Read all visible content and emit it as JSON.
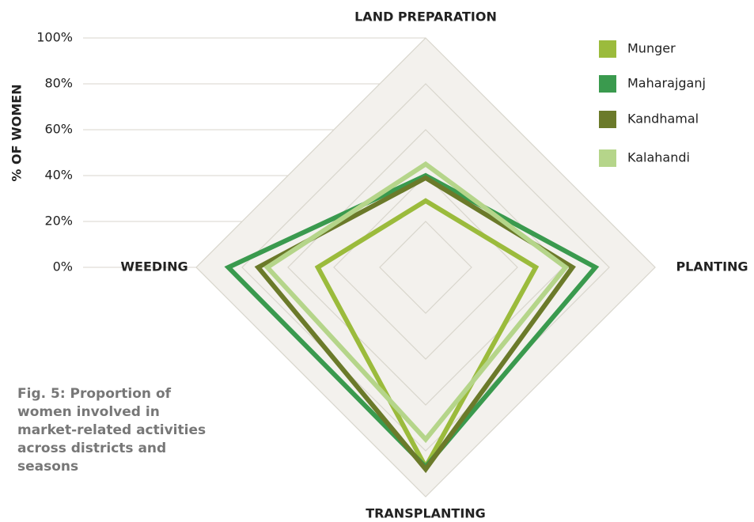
{
  "chart_data": {
    "type": "radar",
    "title": "Fig. 5: Proportion of women involved in market-related activities across districts and seasons",
    "ylabel": "% OF WOMEN",
    "categories": [
      "LAND PREPARATION",
      "PLANTING",
      "TRANSPLANTING",
      "WEEDING"
    ],
    "ylim": [
      0,
      100
    ],
    "yticks": [
      {
        "value": 0,
        "label": "0%"
      },
      {
        "value": 20,
        "label": "20%"
      },
      {
        "value": 40,
        "label": "40%"
      },
      {
        "value": 60,
        "label": "60%"
      },
      {
        "value": 80,
        "label": "80%"
      },
      {
        "value": 100,
        "label": "100%"
      }
    ],
    "series": [
      {
        "name": "Munger",
        "color": "#9bbb3c",
        "values": [
          29,
          48,
          87,
          47
        ]
      },
      {
        "name": "Maharajganj",
        "color": "#3a9a4e",
        "values": [
          40,
          74,
          87,
          86
        ]
      },
      {
        "name": "Kandhamal",
        "color": "#6b7a2a",
        "values": [
          39,
          64,
          88,
          73
        ]
      },
      {
        "name": "Kalahandi",
        "color": "#b5d58a",
        "values": [
          45,
          61,
          75,
          69
        ]
      }
    ]
  }
}
